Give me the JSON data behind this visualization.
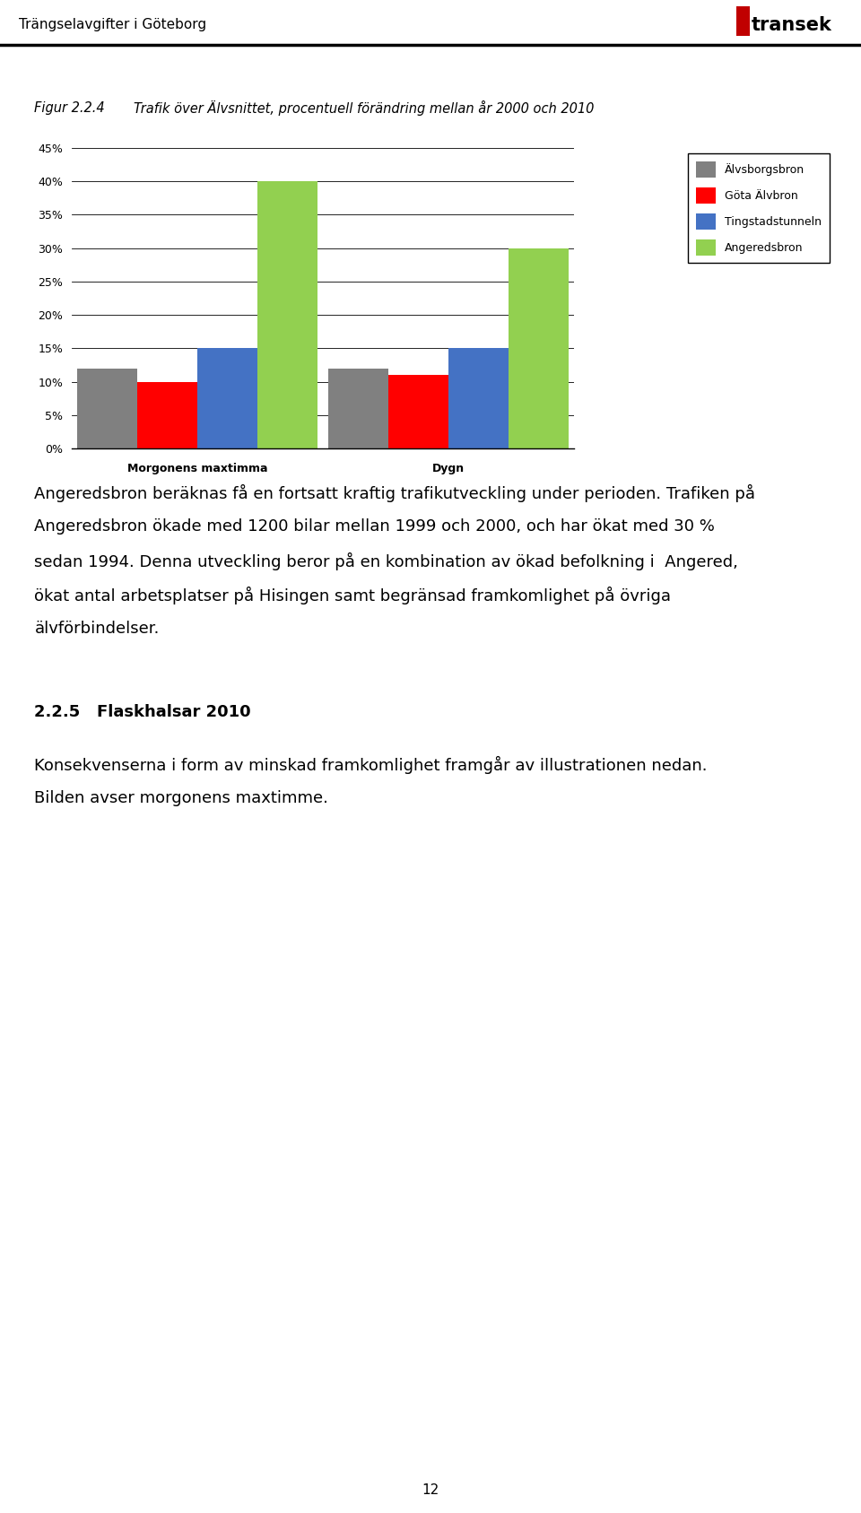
{
  "header_text": "Trängselavgifter i Göteborg",
  "figure_label": "Figur 2.2.4",
  "figure_title": "Trafik över Älvsnittet, procentuell förändring mellan år 2000 och 2010",
  "categories": [
    "Morgonens maxtimma",
    "Dygn"
  ],
  "series": [
    {
      "name": "Älvsborgsbron",
      "color": "#808080",
      "values": [
        0.12,
        0.12
      ]
    },
    {
      "name": "Göta Älvbron",
      "color": "#FF0000",
      "values": [
        0.1,
        0.11
      ]
    },
    {
      "name": "Tingstadstunneln",
      "color": "#4472C4",
      "values": [
        0.15,
        0.15
      ]
    },
    {
      "name": "Angeredsbron",
      "color": "#92D050",
      "values": [
        0.4,
        0.3
      ]
    }
  ],
  "ylim": [
    0,
    0.45
  ],
  "yticks": [
    0.0,
    0.05,
    0.1,
    0.15,
    0.2,
    0.25,
    0.3,
    0.35,
    0.4,
    0.45
  ],
  "bar_width": 0.12,
  "background_color": "#FFFFFF",
  "page_number": "12"
}
